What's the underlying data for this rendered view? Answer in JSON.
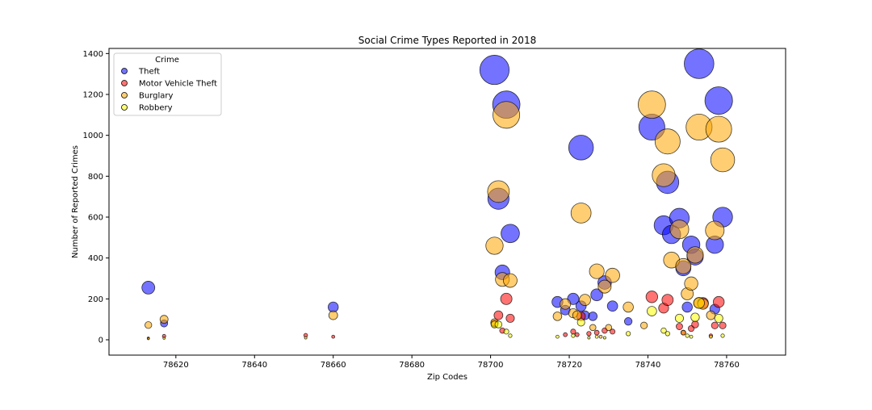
{
  "chart_data": {
    "type": "scatter",
    "title": "Social Crime Types Reported in 2018",
    "xlabel": "Zip Codes",
    "ylabel": "Number of Reported Crimes",
    "xlim": [
      78603,
      78775
    ],
    "ylim": [
      -75,
      1425
    ],
    "xticks": [
      78620,
      78640,
      78660,
      78680,
      78700,
      78720,
      78740,
      78760
    ],
    "yticks": [
      0,
      200,
      400,
      600,
      800,
      1000,
      1200,
      1400
    ],
    "grid": false,
    "legend": {
      "title": "Crime",
      "placement": "top-left"
    },
    "series": [
      {
        "name": "Theft",
        "color": "#0000ff",
        "x": [
          78613,
          78617,
          78660,
          78701,
          78702,
          78703,
          78704,
          78705,
          78717,
          78719,
          78721,
          78723,
          78723,
          78724,
          78726,
          78727,
          78729,
          78731,
          78735,
          78741,
          78744,
          78745,
          78746,
          78748,
          78749,
          78750,
          78751,
          78752,
          78753,
          78757,
          78757,
          78758,
          78759
        ],
        "y": [
          255,
          80,
          160,
          1320,
          690,
          330,
          1150,
          520,
          185,
          145,
          200,
          940,
          165,
          120,
          115,
          220,
          280,
          165,
          90,
          1040,
          560,
          770,
          515,
          595,
          350,
          160,
          465,
          405,
          1350,
          465,
          150,
          1170,
          600
        ]
      },
      {
        "name": "Motor Vehicle Theft",
        "color": "#ff0000",
        "x": [
          78613,
          78617,
          78653,
          78660,
          78701,
          78702,
          78703,
          78704,
          78705,
          78719,
          78721,
          78722,
          78723,
          78725,
          78727,
          78729,
          78731,
          78741,
          78744,
          78745,
          78748,
          78749,
          78751,
          78752,
          78753,
          78754,
          78756,
          78757,
          78758,
          78759
        ],
        "y": [
          8,
          18,
          22,
          15,
          80,
          120,
          45,
          200,
          105,
          25,
          40,
          25,
          115,
          30,
          35,
          45,
          40,
          210,
          155,
          195,
          65,
          35,
          55,
          75,
          180,
          180,
          20,
          70,
          185,
          70
        ]
      },
      {
        "name": "Burglary",
        "color": "#ffa500",
        "x": [
          78613,
          78617,
          78660,
          78701,
          78701,
          78702,
          78703,
          78704,
          78705,
          78717,
          78719,
          78721,
          78722,
          78723,
          78724,
          78726,
          78727,
          78728,
          78729,
          78730,
          78731,
          78735,
          78739,
          78741,
          78745,
          78744,
          78746,
          78748,
          78749,
          78749,
          78750,
          78751,
          78752,
          78753,
          78754,
          78756,
          78757,
          78758,
          78759
        ],
        "y": [
          72,
          100,
          120,
          460,
          85,
          725,
          295,
          1100,
          290,
          115,
          175,
          130,
          120,
          620,
          195,
          60,
          335,
          15,
          260,
          60,
          315,
          160,
          70,
          1150,
          970,
          805,
          390,
          540,
          360,
          35,
          225,
          275,
          415,
          1040,
          175,
          120,
          535,
          1030,
          880
        ]
      },
      {
        "name": "Robbery",
        "color": "#ffff00",
        "x": [
          78613,
          78617,
          78653,
          78701,
          78702,
          78704,
          78705,
          78717,
          78721,
          78723,
          78725,
          78727,
          78729,
          78735,
          78741,
          78744,
          78745,
          78748,
          78750,
          78751,
          78752,
          78753,
          78756,
          78758,
          78759
        ],
        "y": [
          5,
          8,
          10,
          75,
          75,
          40,
          20,
          15,
          20,
          85,
          10,
          15,
          10,
          30,
          140,
          45,
          30,
          105,
          20,
          15,
          110,
          180,
          15,
          105,
          20
        ]
      }
    ]
  }
}
